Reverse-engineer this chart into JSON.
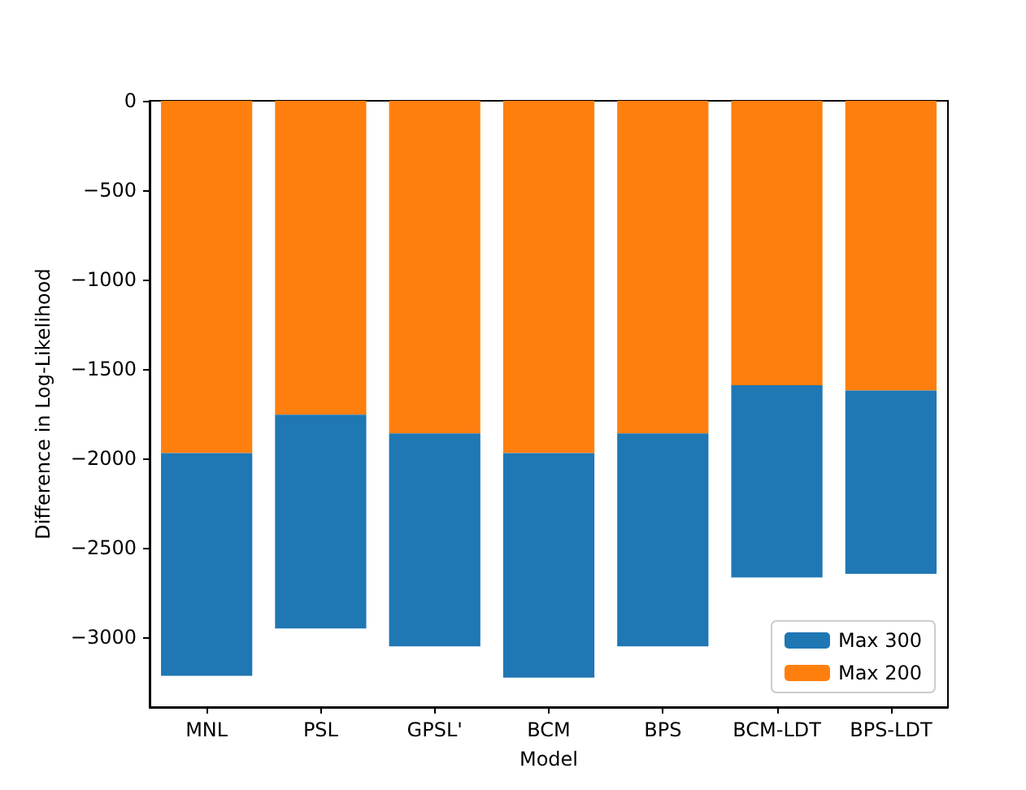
{
  "chart_data": {
    "type": "bar",
    "stacked": true,
    "xlabel": "Model",
    "ylabel": "Difference in Log-Likelihood",
    "categories": [
      "MNL",
      "PSL",
      "GPSL'",
      "BCM",
      "BPS",
      "BCM-LDT",
      "BPS-LDT"
    ],
    "series": [
      {
        "name": "Max 200",
        "color": "#ff7f0e",
        "values": [
          -1970,
          -1755,
          -1860,
          -1970,
          -1860,
          -1590,
          -1620
        ]
      },
      {
        "name": "Max 300",
        "color": "#1f77b4",
        "values": [
          -1245,
          -1195,
          -1190,
          -1255,
          -1190,
          -1075,
          -1025
        ]
      }
    ],
    "ylim": [
      -3390,
      0
    ],
    "yticks": [
      -3000,
      -2500,
      -2000,
      -1500,
      -1000,
      -500,
      0
    ],
    "grid": false,
    "legend": "bottom right"
  }
}
